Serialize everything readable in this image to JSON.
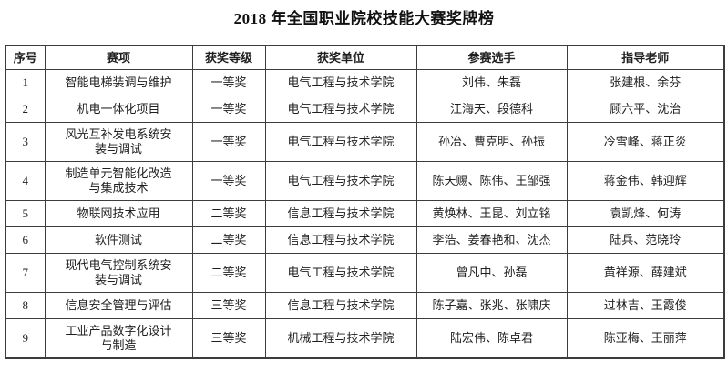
{
  "page": {
    "title": "2018 年全国职业院校技能大赛奖牌榜"
  },
  "table": {
    "columns": [
      "序号",
      "赛项",
      "获奖等级",
      "获奖单位",
      "参赛选手",
      "指导老师"
    ],
    "rows": [
      {
        "no": "1",
        "event": "智能电梯装调与维护",
        "award": "一等奖",
        "unit": "电气工程与技术学院",
        "contestants": "刘伟、朱磊",
        "teachers": "张建根、余芬"
      },
      {
        "no": "2",
        "event": "机电一体化项目",
        "award": "一等奖",
        "unit": "电气工程与技术学院",
        "contestants": "江海天、段德科",
        "teachers": "顾六平、沈治"
      },
      {
        "no": "3",
        "event": "风光互补发电系统安\n装与调试",
        "award": "一等奖",
        "unit": "电气工程与技术学院",
        "contestants": "孙冶、曹克明、孙振",
        "teachers": "冷雪峰、蒋正炎"
      },
      {
        "no": "4",
        "event": "制造单元智能化改造\n与集成技术",
        "award": "一等奖",
        "unit": "电气工程与技术学院",
        "contestants": "陈天赐、陈伟、王邹强",
        "teachers": "蒋金伟、韩迎辉"
      },
      {
        "no": "5",
        "event": "物联网技术应用",
        "award": "二等奖",
        "unit": "信息工程与技术学院",
        "contestants": "黄焕林、王昆、刘立铭",
        "teachers": "袁凯烽、何涛"
      },
      {
        "no": "6",
        "event": "软件测试",
        "award": "二等奖",
        "unit": "信息工程与技术学院",
        "contestants": "李浩、姜春艳和、沈杰",
        "teachers": "陆兵、范晓玲"
      },
      {
        "no": "7",
        "event": "现代电气控制系统安\n装与调试",
        "award": "二等奖",
        "unit": "电气工程与技术学院",
        "contestants": "曾凡中、孙磊",
        "teachers": "黄祥源、薛建斌"
      },
      {
        "no": "8",
        "event": "信息安全管理与评估",
        "award": "三等奖",
        "unit": "信息工程与技术学院",
        "contestants": "陈子嘉、张兆、张啸庆",
        "teachers": "过林吉、王霞俊"
      },
      {
        "no": "9",
        "event": "工业产品数字化设计\n与制造",
        "award": "三等奖",
        "unit": "机械工程与技术学院",
        "contestants": "陆宏伟、陈卓君",
        "teachers": "陈亚梅、王丽萍"
      }
    ]
  },
  "colors": {
    "border": "#3c3c3c",
    "text": "#1f1f1f",
    "background": "#ffffff"
  }
}
